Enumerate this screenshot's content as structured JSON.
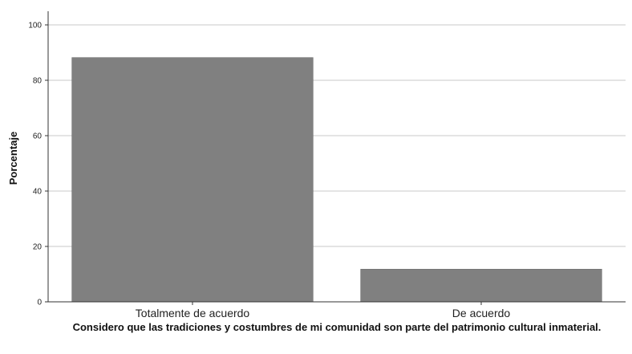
{
  "chart_data": {
    "type": "bar",
    "categories": [
      "Totalmente de acuerdo",
      "De acuerdo"
    ],
    "values": [
      88.2,
      11.8
    ],
    "ylabel": "Porcentaje",
    "xlabel": "Considero que las tradiciones y costumbres de mi comunidad son parte del patrimonio cultural inmaterial.",
    "ylim": [
      0,
      100
    ],
    "yticks": [
      "0",
      "20",
      "40",
      "60",
      "80",
      "100"
    ],
    "grid": true,
    "bar_color": "#808080"
  }
}
